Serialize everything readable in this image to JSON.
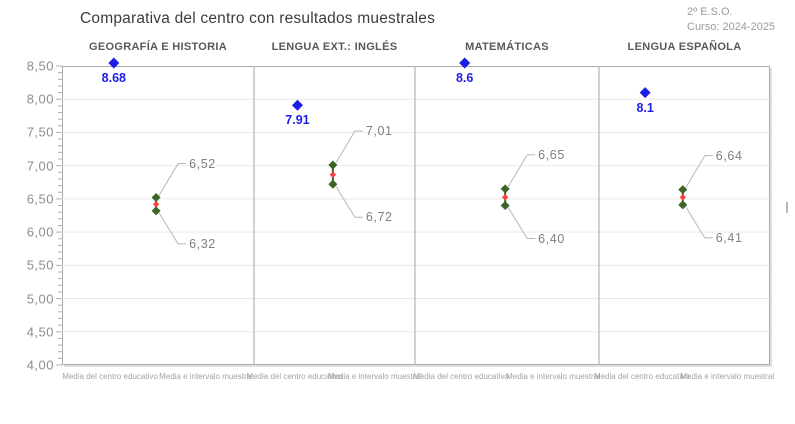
{
  "title": "Comparativa del centro con resultados muestrales",
  "meta": {
    "grade": "2º E.S.O.",
    "course": "Curso: 2024-2025"
  },
  "chart_data": {
    "type": "scatter",
    "title": "Comparativa del centro con resultados muestrales",
    "ylim": [
      4.0,
      8.5
    ],
    "ytick_step": 0.5,
    "ytick_labels_top_to_bottom": [
      "8,50",
      "8,00",
      "7,50",
      "7,00",
      "6,50",
      "6,00",
      "5,50",
      "5,00",
      "4,50",
      "4,00"
    ],
    "grid": true,
    "legend_position": "none",
    "categories": [
      "Media del centro educativo",
      "Media e intervalo muestral"
    ],
    "series_meaning": {
      "center": "Media del centro educativo (blue diamond)",
      "interval": "Media e intervalo muestral (green interval with red sample mean)"
    },
    "panels": [
      {
        "subject": "GEOGRAFÍA E HISTORIA",
        "center_mean": 8.68,
        "center_label": "8.68",
        "interval_high": 6.52,
        "interval_low": 6.32,
        "high_label": "6,52",
        "low_label": "6,32"
      },
      {
        "subject": "LENGUA EXT.: INGLÉS",
        "center_mean": 7.91,
        "center_label": "7.91",
        "interval_high": 7.01,
        "interval_low": 6.72,
        "high_label": "7,01",
        "low_label": "6,72"
      },
      {
        "subject": "MATEMÁTICAS",
        "center_mean": 8.6,
        "center_label": "8.6",
        "interval_high": 6.65,
        "interval_low": 6.4,
        "high_label": "6,65",
        "low_label": "6,40"
      },
      {
        "subject": "LENGUA ESPAÑOLA",
        "center_mean": 8.1,
        "center_label": "8.1",
        "interval_high": 6.64,
        "interval_low": 6.41,
        "high_label": "6,64",
        "low_label": "6,41"
      }
    ],
    "colors": {
      "center": "#1d1de8",
      "interval": "#3f6428",
      "interval_mid": "#f94040",
      "gridline": "#e9e9e9",
      "separator": "#c2c2c2",
      "border": "#ababab",
      "tick": "#b0b0b0",
      "leader": "#b8b8b8"
    }
  }
}
